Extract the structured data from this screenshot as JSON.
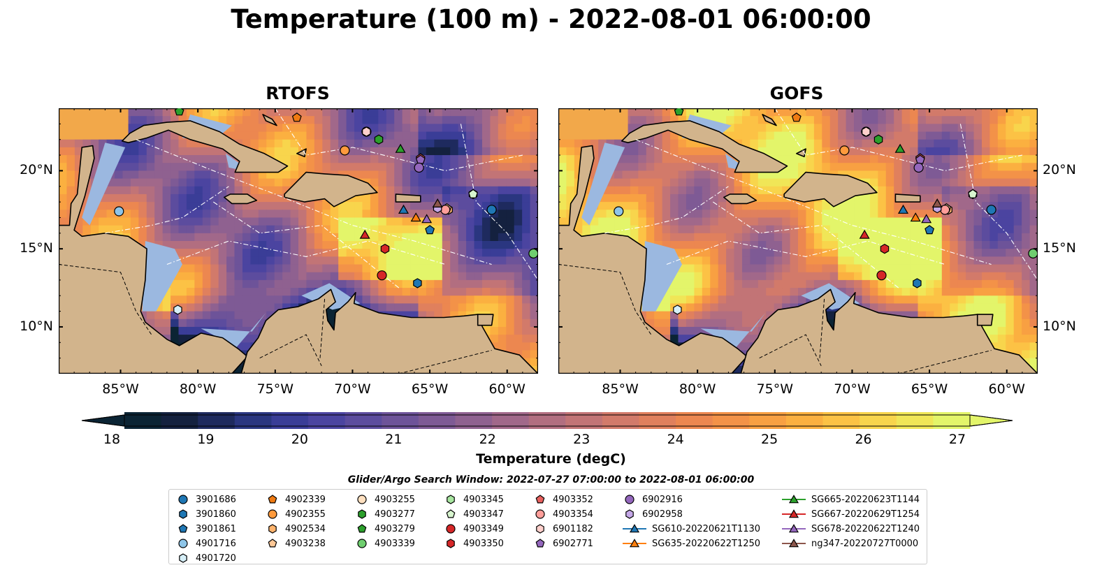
{
  "title": "Temperature (100 m) - 2022-08-01 06:00:00",
  "panels": [
    {
      "id": "rtofs",
      "title": "RTOFS"
    },
    {
      "id": "gofs",
      "title": "GOFS"
    }
  ],
  "map": {
    "lon_range": [
      -89,
      -58
    ],
    "lat_range": [
      7,
      24
    ],
    "lon_ticks": [
      "85°W",
      "80°W",
      "75°W",
      "70°W",
      "65°W",
      "60°W"
    ],
    "lon_tick_values": [
      -85,
      -80,
      -75,
      -70,
      -65,
      -60
    ],
    "lat_ticks": [
      "10°N",
      "15°N",
      "20°N"
    ],
    "lat_tick_values": [
      10,
      15,
      20
    ],
    "land_color": "#d2b48c",
    "water_color": "#9bb8e0"
  },
  "colorbar": {
    "label": "Temperature (degC)",
    "ticks": [
      "18",
      "19",
      "20",
      "21",
      "22",
      "23",
      "24",
      "25",
      "26",
      "27"
    ],
    "range": [
      18,
      27
    ],
    "colors": [
      "#0b2434",
      "#14213f",
      "#1e2a5e",
      "#2a3680",
      "#3a3d97",
      "#4b44a0",
      "#5c4c9e",
      "#6d5399",
      "#7e5a95",
      "#8f6190",
      "#a1688a",
      "#b26e80",
      "#c27476",
      "#d27a6a",
      "#e0805d",
      "#ec8750",
      "#f39248",
      "#f8a042",
      "#fbb040",
      "#fcc245",
      "#f8d54c",
      "#f0e657",
      "#e3f56a"
    ]
  },
  "search_window": "Glider/Argo Search Window: 2022-07-27 07:00:00 to 2022-08-01 06:00:00",
  "legend": [
    {
      "label": "3901686",
      "marker": "circle",
      "color": "#1f77b4"
    },
    {
      "label": "3901860",
      "marker": "hexagon",
      "color": "#1f77b4"
    },
    {
      "label": "3901861",
      "marker": "pentagon",
      "color": "#1f77b4"
    },
    {
      "label": "4901716",
      "marker": "circle",
      "color": "#8ec5e8"
    },
    {
      "label": "4901720",
      "marker": "hexagon",
      "color": "#d6eff8"
    },
    {
      "label": "4902339",
      "marker": "pentagon",
      "color": "#ef7a12"
    },
    {
      "label": "4902355",
      "marker": "circle",
      "color": "#ff9a3c"
    },
    {
      "label": "4902534",
      "marker": "hexagon",
      "color": "#ffb46e"
    },
    {
      "label": "4903238",
      "marker": "pentagon",
      "color": "#ffc896"
    },
    {
      "label": "4903255",
      "marker": "circle",
      "color": "#ffe0c0"
    },
    {
      "label": "4903277",
      "marker": "hexagon",
      "color": "#2ca02c"
    },
    {
      "label": "4903279",
      "marker": "pentagon",
      "color": "#2ca02c"
    },
    {
      "label": "4903339",
      "marker": "circle",
      "color": "#6fce6f"
    },
    {
      "label": "4903345",
      "marker": "hexagon",
      "color": "#a8e6a0"
    },
    {
      "label": "4903347",
      "marker": "pentagon",
      "color": "#d8f5cf"
    },
    {
      "label": "4903349",
      "marker": "circle",
      "color": "#d62728"
    },
    {
      "label": "4903350",
      "marker": "hexagon",
      "color": "#d62728"
    },
    {
      "label": "4903352",
      "marker": "pentagon",
      "color": "#e8605e"
    },
    {
      "label": "4903354",
      "marker": "circle",
      "color": "#ff9e9a"
    },
    {
      "label": "6901182",
      "marker": "hexagon",
      "color": "#ffd0cc"
    },
    {
      "label": "6902771",
      "marker": "pentagon",
      "color": "#9467bd"
    },
    {
      "label": "6902916",
      "marker": "circle",
      "color": "#9467bd"
    },
    {
      "label": "6902958",
      "marker": "hexagon",
      "color": "#c5a8e8"
    },
    {
      "label": "SG610-20220621T1130",
      "marker": "triangle-line",
      "color": "#1f77b4"
    },
    {
      "label": "SG635-20220622T1250",
      "marker": "triangle-line",
      "color": "#ff7f0e"
    },
    {
      "label": "SG665-20220623T1144",
      "marker": "triangle-line",
      "color": "#2ca02c"
    },
    {
      "label": "SG667-20220629T1254",
      "marker": "triangle-line",
      "color": "#d62728"
    },
    {
      "label": "SG678-20220622T1240",
      "marker": "triangle-line",
      "color": "#9467bd"
    },
    {
      "label": "ng347-20220727T0000",
      "marker": "triangle-line",
      "color": "#8c564b"
    }
  ],
  "platforms": [
    {
      "label": "3901686",
      "lon": -61.0,
      "lat": 17.5
    },
    {
      "label": "3901860",
      "lon": -65.8,
      "lat": 12.8
    },
    {
      "label": "3901861",
      "lon": -65.0,
      "lat": 16.2
    },
    {
      "label": "4901716",
      "lon": -85.1,
      "lat": 17.4
    },
    {
      "label": "4901720",
      "lon": -81.3,
      "lat": 11.1
    },
    {
      "label": "4902339",
      "lon": -73.6,
      "lat": 23.4
    },
    {
      "label": "4902355",
      "lon": -70.5,
      "lat": 21.3
    },
    {
      "label": "4902534",
      "lon": -63.8,
      "lat": 17.5
    },
    {
      "label": "4903238",
      "lon": -63.9,
      "lat": 17.6
    },
    {
      "label": "4903255",
      "lon": -69.1,
      "lat": 22.5
    },
    {
      "label": "4903277",
      "lon": -68.3,
      "lat": 22.0
    },
    {
      "label": "4903279",
      "lon": -81.2,
      "lat": 23.8
    },
    {
      "label": "4903339",
      "lon": -58.3,
      "lat": 14.7
    },
    {
      "label": "4903345",
      "lon": -62.2,
      "lat": 18.5
    },
    {
      "label": "4903347",
      "lon": -62.2,
      "lat": 18.5
    },
    {
      "label": "4903349",
      "lon": -68.1,
      "lat": 13.3
    },
    {
      "label": "4903350",
      "lon": -67.9,
      "lat": 15.0
    },
    {
      "label": "4903352",
      "lon": -65.6,
      "lat": 20.8
    },
    {
      "label": "4903354",
      "lon": -64.0,
      "lat": 17.5
    },
    {
      "label": "6901182",
      "lon": -69.1,
      "lat": 22.5
    },
    {
      "label": "6902771",
      "lon": -65.6,
      "lat": 20.7
    },
    {
      "label": "6902916",
      "lon": -65.7,
      "lat": 20.2
    },
    {
      "label": "6902958",
      "lon": -64.5,
      "lat": 17.6
    },
    {
      "label": "SG610-20220621T1130",
      "lon": -66.7,
      "lat": 17.5
    },
    {
      "label": "SG635-20220622T1250",
      "lon": -65.9,
      "lat": 17.0
    },
    {
      "label": "SG665-20220623T1144",
      "lon": -66.9,
      "lat": 21.4
    },
    {
      "label": "SG667-20220629T1254",
      "lon": -69.2,
      "lat": 15.9
    },
    {
      "label": "SG678-20220622T1240",
      "lon": -65.2,
      "lat": 16.9
    },
    {
      "label": "ng347-20220727T0000",
      "lon": -64.5,
      "lat": 17.9
    }
  ]
}
